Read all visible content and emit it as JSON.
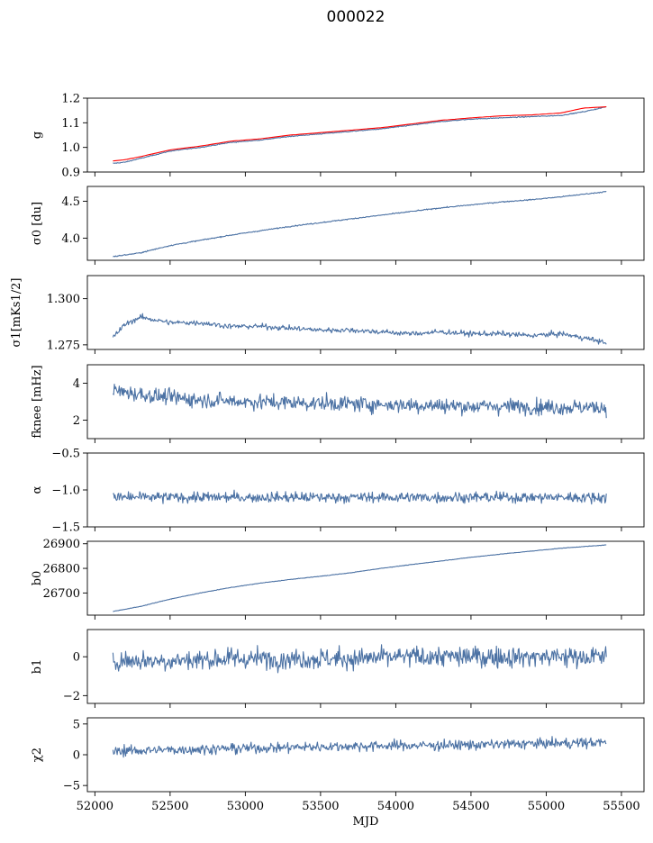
{
  "figure": {
    "title": "000022",
    "colors": {
      "data": "#4c72a4",
      "fit": "#ff0000",
      "frame": "#000000"
    }
  },
  "chart_data": [
    {
      "type": "line",
      "ylabel": "g",
      "xlim": [
        51950,
        55650
      ],
      "ylim": [
        0.9,
        1.2
      ],
      "yticks": [
        0.9,
        1.0,
        1.1,
        1.2
      ],
      "ytick_labels": [
        "0.9",
        "1.0",
        "1.1",
        "1.2"
      ],
      "series": [
        {
          "color": "#4c72a4",
          "x": [
            52120,
            52200,
            52300,
            52500,
            52700,
            52900,
            53100,
            53300,
            53500,
            53700,
            53900,
            54100,
            54300,
            54500,
            54700,
            54900,
            55100,
            55250,
            55400
          ],
          "y": [
            0.935,
            0.94,
            0.955,
            0.985,
            1.0,
            1.02,
            1.03,
            1.045,
            1.055,
            1.065,
            1.075,
            1.09,
            1.105,
            1.115,
            1.12,
            1.125,
            1.13,
            1.145,
            1.165
          ]
        },
        {
          "color": "#ff0000",
          "x": [
            52120,
            52200,
            52300,
            52500,
            52700,
            52900,
            53100,
            53300,
            53500,
            53700,
            53900,
            54100,
            54300,
            54500,
            54700,
            54900,
            55100,
            55250,
            55400
          ],
          "y": [
            0.945,
            0.95,
            0.962,
            0.99,
            1.005,
            1.025,
            1.035,
            1.05,
            1.06,
            1.07,
            1.08,
            1.095,
            1.11,
            1.12,
            1.128,
            1.132,
            1.14,
            1.16,
            1.165
          ]
        }
      ]
    },
    {
      "type": "line",
      "ylabel": "σ0 [du]",
      "xlim": [
        51950,
        55650
      ],
      "ylim": [
        3.7,
        4.7
      ],
      "yticks": [
        4.0,
        4.5
      ],
      "ytick_labels": [
        "4.0",
        "4.5"
      ],
      "series": [
        {
          "color": "#4c72a4",
          "x": [
            52120,
            52300,
            52500,
            52700,
            52900,
            53100,
            53300,
            53500,
            53700,
            53900,
            54100,
            54300,
            54500,
            54700,
            54900,
            55100,
            55400
          ],
          "y": [
            3.75,
            3.8,
            3.9,
            3.97,
            4.04,
            4.1,
            4.16,
            4.21,
            4.26,
            4.31,
            4.36,
            4.41,
            4.45,
            4.49,
            4.52,
            4.56,
            4.63
          ]
        }
      ]
    },
    {
      "type": "line",
      "ylabel": "σ1[mKs1/2]",
      "xlim": [
        51950,
        55650
      ],
      "ylim": [
        1.2725,
        1.3125
      ],
      "yticks": [
        1.275,
        1.3
      ],
      "ytick_labels": [
        "1.275",
        "1.300"
      ],
      "series": [
        {
          "color": "#4c72a4",
          "x": [
            52120,
            52200,
            52300,
            52500,
            52700,
            52900,
            53100,
            53300,
            53500,
            53700,
            53900,
            54100,
            54300,
            54500,
            54700,
            54900,
            55100,
            55300,
            55400
          ],
          "y": [
            1.279,
            1.286,
            1.29,
            1.287,
            1.287,
            1.285,
            1.285,
            1.284,
            1.283,
            1.283,
            1.282,
            1.281,
            1.282,
            1.281,
            1.281,
            1.28,
            1.281,
            1.278,
            1.276
          ]
        }
      ]
    },
    {
      "type": "line",
      "ylabel": "fknee [mHz]",
      "xlim": [
        51950,
        55650
      ],
      "ylim": [
        1,
        5
      ],
      "yticks": [
        2,
        4
      ],
      "ytick_labels": [
        "2",
        "4"
      ],
      "series": [
        {
          "color": "#4c72a4",
          "x": [
            52120,
            52400,
            52700,
            53000,
            53300,
            53600,
            53900,
            54200,
            54500,
            54800,
            55100,
            55400
          ],
          "y": [
            3.6,
            3.3,
            3.1,
            3.0,
            2.95,
            2.9,
            2.85,
            2.8,
            2.75,
            2.75,
            2.7,
            2.7
          ]
        }
      ]
    },
    {
      "type": "line",
      "ylabel": "α",
      "xlim": [
        51950,
        55650
      ],
      "ylim": [
        -1.5,
        -0.5
      ],
      "yticks": [
        -1.5,
        -1.0,
        -0.5
      ],
      "ytick_labels": [
        "−1.5",
        "−1.0",
        "−0.5"
      ],
      "series": [
        {
          "color": "#4c72a4",
          "x": [
            52120,
            52500,
            52900,
            53300,
            53700,
            54100,
            54500,
            54900,
            55400
          ],
          "y": [
            -1.1,
            -1.1,
            -1.1,
            -1.1,
            -1.1,
            -1.1,
            -1.1,
            -1.1,
            -1.1
          ]
        }
      ]
    },
    {
      "type": "line",
      "ylabel": "b0",
      "xlim": [
        51950,
        55650
      ],
      "ylim": [
        26610,
        26910
      ],
      "yticks": [
        26700,
        26800,
        26900
      ],
      "ytick_labels": [
        "26700",
        "26800",
        "26900"
      ],
      "series": [
        {
          "color": "#4c72a4",
          "x": [
            52120,
            52300,
            52500,
            52700,
            52900,
            53100,
            53300,
            53500,
            53700,
            53900,
            54100,
            54300,
            54500,
            54700,
            54900,
            55100,
            55400
          ],
          "y": [
            26625,
            26645,
            26675,
            26700,
            26722,
            26740,
            26755,
            26768,
            26782,
            26800,
            26815,
            26830,
            26845,
            26858,
            26870,
            26882,
            26895
          ]
        }
      ]
    },
    {
      "type": "line",
      "ylabel": "b1",
      "xlim": [
        51950,
        55650
      ],
      "ylim": [
        -2.4,
        1.4
      ],
      "yticks": [
        -2,
        0
      ],
      "ytick_labels": [
        "−2",
        "0"
      ],
      "series": [
        {
          "color": "#4c72a4",
          "x": [
            52120,
            52500,
            52900,
            53300,
            53700,
            54100,
            54500,
            54900,
            55400
          ],
          "y": [
            -0.2,
            -0.2,
            -0.1,
            -0.1,
            -0.1,
            0.0,
            0.0,
            0.0,
            0.0
          ]
        }
      ]
    },
    {
      "type": "line",
      "ylabel": "χ2",
      "xlim": [
        51950,
        55650
      ],
      "ylim": [
        -6,
        6
      ],
      "yticks": [
        -5,
        0,
        5
      ],
      "ytick_labels": [
        "−5",
        "0",
        "5"
      ],
      "xlabel": "MJD",
      "xticks": [
        52000,
        52500,
        53000,
        53500,
        54000,
        54500,
        55000,
        55500
      ],
      "xtick_labels": [
        "52000",
        "52500",
        "53000",
        "53500",
        "54000",
        "54500",
        "55000",
        "55500"
      ],
      "series": [
        {
          "color": "#4c72a4",
          "x": [
            52120,
            52500,
            52900,
            53300,
            53700,
            54100,
            54500,
            54900,
            55400
          ],
          "y": [
            0.6,
            0.8,
            1.0,
            1.2,
            1.4,
            1.5,
            1.6,
            1.8,
            2.0
          ]
        }
      ]
    }
  ]
}
